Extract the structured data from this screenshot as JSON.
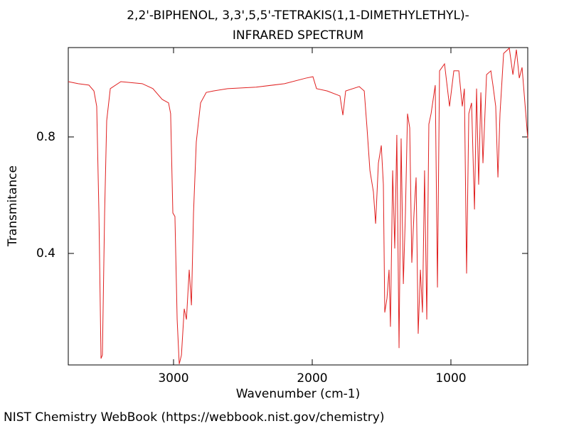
{
  "chart_data": {
    "type": "line",
    "title": [
      "2,2'-BIPHENOL, 3,3',5,5'-TETRAKIS(1,1-DIMETHYLETHYL)-",
      "INFRARED SPECTRUM"
    ],
    "xlabel": "Wavenumber (cm-1)",
    "ylabel": "Transmitance",
    "footer": "NIST Chemistry WebBook (https://webbook.nist.gov/chemistry)",
    "color": "#e02020",
    "xlim": [
      3759,
      446
    ],
    "xticks": [
      3000,
      2000,
      1000
    ],
    "ylim": [
      0.017,
      1.107
    ],
    "yticks": [
      0.4,
      0.8
    ],
    "x": [
      3759,
      3687,
      3610,
      3574,
      3554,
      3538,
      3523,
      3513,
      3497,
      3482,
      3456,
      3380,
      3226,
      3149,
      3082,
      3036,
      3021,
      3005,
      2990,
      2974,
      2959,
      2943,
      2923,
      2907,
      2887,
      2871,
      2856,
      2836,
      2805,
      2764,
      2713,
      2610,
      2405,
      2200,
      2046,
      1995,
      1969,
      1892,
      1800,
      1779,
      1759,
      1661,
      1625,
      1605,
      1584,
      1559,
      1543,
      1523,
      1502,
      1487,
      1477,
      1461,
      1446,
      1436,
      1420,
      1405,
      1390,
      1374,
      1359,
      1343,
      1328,
      1313,
      1297,
      1282,
      1266,
      1251,
      1236,
      1220,
      1205,
      1190,
      1174,
      1159,
      1143,
      1128,
      1113,
      1097,
      1082,
      1046,
      1010,
      979,
      943,
      918,
      903,
      887,
      871,
      851,
      830,
      815,
      800,
      784,
      769,
      743,
      712,
      697,
      677,
      661,
      646,
      620,
      579,
      553,
      528,
      507,
      487,
      446
    ],
    "values": [
      0.99,
      0.983,
      0.978,
      0.958,
      0.905,
      0.539,
      0.039,
      0.051,
      0.539,
      0.856,
      0.966,
      0.99,
      0.983,
      0.966,
      0.929,
      0.917,
      0.88,
      0.539,
      0.527,
      0.173,
      0.02,
      0.051,
      0.21,
      0.173,
      0.344,
      0.222,
      0.539,
      0.783,
      0.917,
      0.953,
      0.958,
      0.966,
      0.971,
      0.983,
      1.002,
      1.007,
      0.966,
      0.958,
      0.941,
      0.875,
      0.958,
      0.973,
      0.958,
      0.831,
      0.685,
      0.612,
      0.502,
      0.71,
      0.771,
      0.636,
      0.197,
      0.246,
      0.344,
      0.148,
      0.685,
      0.417,
      0.807,
      0.075,
      0.795,
      0.295,
      0.539,
      0.88,
      0.831,
      0.368,
      0.539,
      0.661,
      0.124,
      0.344,
      0.197,
      0.685,
      0.173,
      0.844,
      0.88,
      0.929,
      0.978,
      0.283,
      1.027,
      1.051,
      0.905,
      1.027,
      1.027,
      0.905,
      0.966,
      0.331,
      0.88,
      0.917,
      0.551,
      0.966,
      0.636,
      0.953,
      0.71,
      1.014,
      1.027,
      0.978,
      0.905,
      0.661,
      0.88,
      1.087,
      1.105,
      1.014,
      1.1,
      1.002,
      1.039,
      0.795
    ]
  }
}
